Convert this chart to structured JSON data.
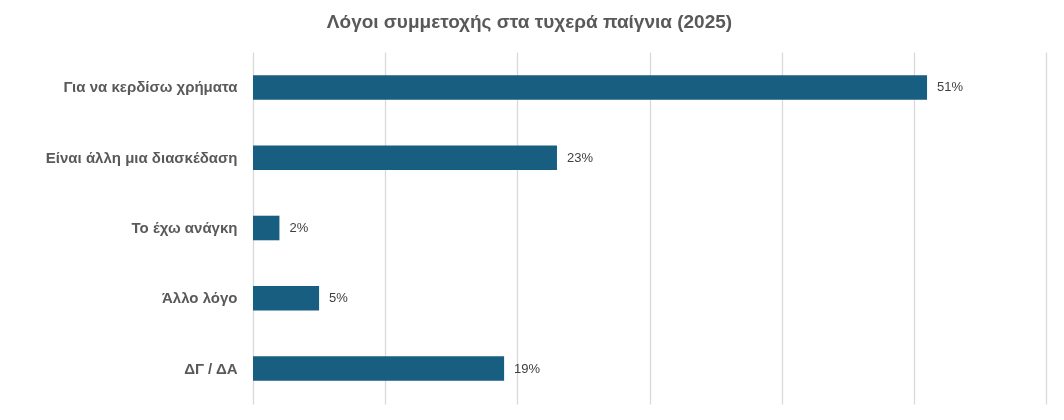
{
  "chart_data": {
    "type": "bar",
    "orientation": "horizontal",
    "title": "Λόγοι συμμετοχής στα τυχερά παίγνια (2025)",
    "categories": [
      "Για να κερδίσω χρήματα",
      "Είναι άλλη μια διασκέδαση",
      "Το έχω ανάγκη",
      "Άλλο λόγο",
      "ΔΓ / ΔΑ"
    ],
    "values": [
      51,
      23,
      2,
      5,
      19
    ],
    "value_labels": [
      "51%",
      "23%",
      "2%",
      "5%",
      "19%"
    ],
    "color": "#175e80",
    "xlim": [
      0,
      60
    ],
    "xticks": [
      {
        "value": 0,
        "label": null
      },
      {
        "value": 10,
        "label": null
      },
      {
        "value": 20,
        "label": null
      },
      {
        "value": 30,
        "label": null
      },
      {
        "value": 40,
        "label": null
      },
      {
        "value": 50,
        "label": null
      },
      {
        "value": 60,
        "label": null
      }
    ],
    "tick_labels": "y",
    "grid": "x"
  }
}
